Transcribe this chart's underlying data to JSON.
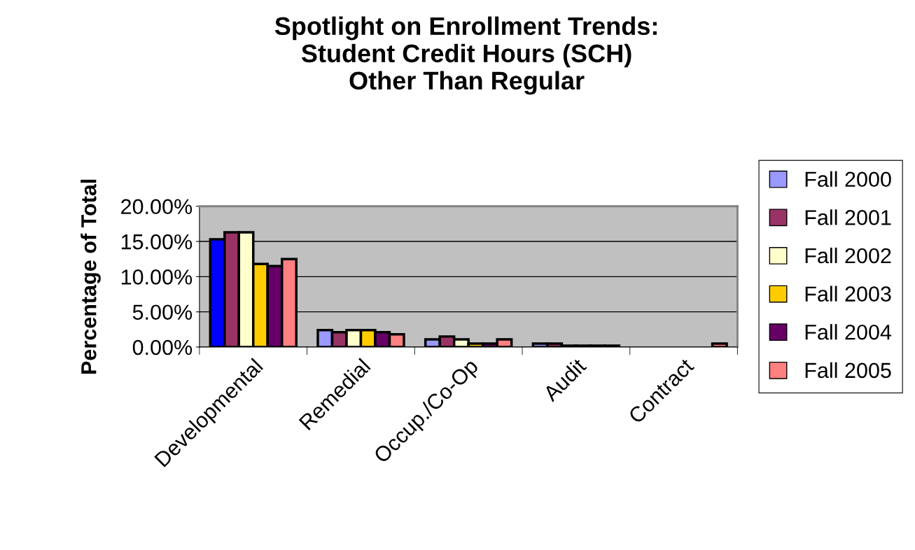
{
  "chart_data": {
    "type": "bar",
    "title": "Spotlight on Enrollment Trends:\nStudent Credit Hours (SCH)\nOther Than Regular",
    "ylabel": "Percentage of Total",
    "categories": [
      "Developmental",
      "Remedial",
      "Occup./Co-Op",
      "Audit",
      "Contract"
    ],
    "series": [
      {
        "name": "Fall 2000",
        "color": "#9999ff",
        "colors": [
          "#0000ff",
          "#9999ff",
          "#9999ff",
          "#9999ff",
          "#9999ff"
        ],
        "values": [
          15.3,
          2.4,
          1.1,
          0.5,
          0
        ]
      },
      {
        "name": "Fall 2001",
        "color": "#993366",
        "values": [
          16.3,
          2.1,
          1.5,
          0.5,
          0
        ]
      },
      {
        "name": "Fall 2002",
        "color": "#ffffcc",
        "values": [
          16.3,
          2.4,
          1.1,
          0.2,
          0
        ]
      },
      {
        "name": "Fall 2003",
        "color": "#ffcc00",
        "values": [
          11.8,
          2.4,
          0.5,
          0.2,
          0
        ]
      },
      {
        "name": "Fall 2004",
        "color": "#660066",
        "values": [
          11.5,
          2.1,
          0.5,
          0.2,
          0
        ]
      },
      {
        "name": "Fall 2005",
        "color": "#ff8080",
        "values": [
          12.5,
          1.8,
          1.1,
          0.2,
          0.5
        ]
      }
    ],
    "ylim": [
      0,
      20
    ],
    "yticks": [
      {
        "value": 0,
        "label": "0.00%"
      },
      {
        "value": 5,
        "label": "5.00%"
      },
      {
        "value": 10,
        "label": "10.00%"
      },
      {
        "value": 15,
        "label": "15.00%"
      },
      {
        "value": 20,
        "label": "20.00%"
      }
    ],
    "grid": "y",
    "legend": "right"
  }
}
